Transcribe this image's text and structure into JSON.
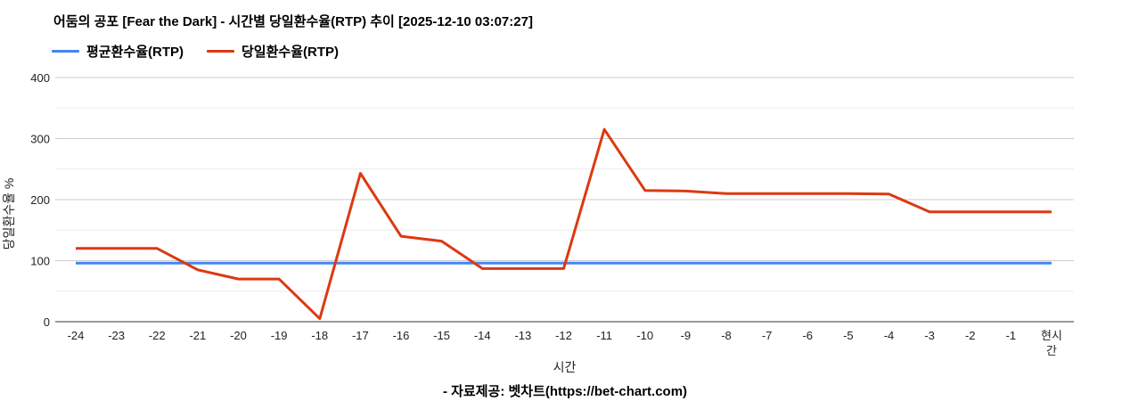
{
  "header": {
    "title": "어둠의 공포 [Fear the Dark] - 시간별 당일환수율(RTP) 추이 [2025-12-10 03:07:27]"
  },
  "legend": {
    "items": [
      {
        "label": "평균환수율(RTP)",
        "color": "#4285f4"
      },
      {
        "label": "당일환수율(RTP)",
        "color": "#dc3912"
      }
    ]
  },
  "footer": {
    "text": "- 자료제공: 벳차트(https://bet-chart.com)"
  },
  "colors": {
    "average_line": "#4285f4",
    "daily_line": "#dc3912",
    "major_gridline": "#cccccc",
    "minor_gridline": "#ebebeb",
    "axis_baseline": "#333333",
    "tick_text": "#222222"
  },
  "chart_data": {
    "type": "line",
    "title": "어둠의 공포 [Fear the Dark] - 시간별 당일환수율(RTP) 추이 [2025-12-10 03:07:27]",
    "xlabel": "시간",
    "ylabel": "당일환수율 %",
    "ylim": [
      0,
      400
    ],
    "y_ticks": [
      0,
      100,
      200,
      300,
      400
    ],
    "y_minor_ticks": [
      50,
      150,
      250,
      350
    ],
    "grid": true,
    "legend_position": "top-left",
    "categories": [
      "-24",
      "-23",
      "-22",
      "-21",
      "-20",
      "-19",
      "-18",
      "-17",
      "-16",
      "-15",
      "-14",
      "-13",
      "-12",
      "-11",
      "-10",
      "-9",
      "-8",
      "-7",
      "-6",
      "-5",
      "-4",
      "-3",
      "-2",
      "-1",
      "현시간"
    ],
    "series": [
      {
        "name": "평균환수율(RTP)",
        "color": "#4285f4",
        "values": [
          96,
          96,
          96,
          96,
          96,
          96,
          96,
          96,
          96,
          96,
          96,
          96,
          96,
          96,
          96,
          96,
          96,
          96,
          96,
          96,
          96,
          96,
          96,
          96,
          96
        ]
      },
      {
        "name": "당일환수율(RTP)",
        "color": "#dc3912",
        "values": [
          120,
          120,
          120,
          85,
          70,
          70,
          5,
          243,
          140,
          132,
          87,
          87,
          87,
          315,
          215,
          214,
          210,
          210,
          210,
          210,
          209,
          180,
          180,
          180,
          180
        ]
      }
    ]
  }
}
